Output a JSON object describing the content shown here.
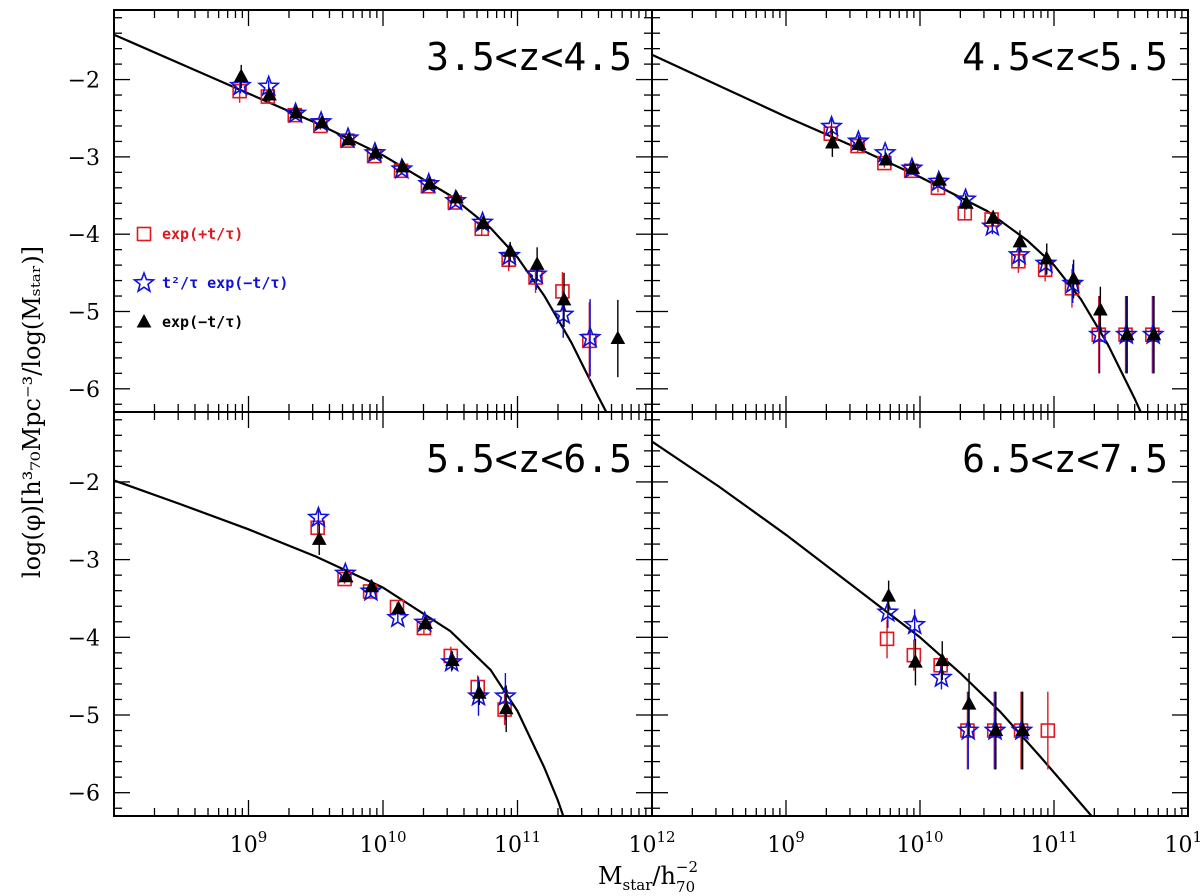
{
  "chart_data": {
    "type": "scatter",
    "x_scale": "log",
    "x_range": [
      100000000.0,
      1000000000000.0
    ],
    "y_range": [
      -6.3,
      -1.1
    ],
    "y_ticks": [
      -2,
      -3,
      -4,
      -5,
      -6
    ],
    "y_tick_labels": [
      "−2",
      "−3",
      "−4",
      "−5",
      "−6"
    ],
    "x_ticks": [
      9,
      10,
      11,
      12
    ],
    "x_tick_labels": {
      "base": "10",
      "exps": [
        "9",
        "10",
        "11",
        "12"
      ]
    },
    "xlabel": {
      "main": "M",
      "sub1": "star",
      "mid": "/h",
      "sup": "−2",
      "sub2": "70"
    },
    "ylabel": "log(φ)[h³₇₀Mpc⁻³/log(Mₛₜₐᵣ)]",
    "legend": {
      "placement": "left-middle of top-left panel",
      "entries": [
        {
          "label": "exp(+t/τ)",
          "marker": "square",
          "color": "#e0181e"
        },
        {
          "label": "t²/τ exp(−t/τ)",
          "marker": "star",
          "color": "#1010d8"
        },
        {
          "label": "exp(−t/τ)",
          "marker": "triangle",
          "color": "#000000"
        }
      ]
    },
    "panels": [
      {
        "label": "3.5<z<4.5",
        "curve": {
          "x": [
            8.0,
            8.5,
            9.0,
            9.5,
            10.0,
            10.5,
            10.8,
            11.0,
            11.2,
            11.4,
            11.6,
            11.75
          ],
          "y": [
            -1.42,
            -1.8,
            -2.18,
            -2.56,
            -2.98,
            -3.5,
            -3.92,
            -4.3,
            -4.8,
            -5.4,
            -6.1,
            -6.6
          ]
        },
        "series": [
          {
            "name": "exp(+t/τ)",
            "x": [
              8.94,
              9.15,
              9.35,
              9.54,
              9.74,
              9.94,
              10.14,
              10.34,
              10.54,
              10.74,
              10.94,
              11.14,
              11.34,
              11.54
            ],
            "y": [
              -2.15,
              -2.22,
              -2.46,
              -2.6,
              -2.79,
              -2.99,
              -3.18,
              -3.38,
              -3.59,
              -3.93,
              -4.33,
              -4.56,
              -4.74,
              -5.38
            ],
            "err": [
              0.15,
              0.08,
              0.05,
              0.05,
              0.05,
              0.05,
              0.05,
              0.05,
              0.05,
              0.08,
              0.15,
              0.2,
              0.25,
              0.5
            ]
          },
          {
            "name": "t²/τ exp(−t/τ)",
            "x": [
              8.94,
              9.15,
              9.35,
              9.54,
              9.74,
              9.94,
              10.14,
              10.34,
              10.54,
              10.74,
              10.94,
              11.14,
              11.34,
              11.54
            ],
            "y": [
              -2.08,
              -2.09,
              -2.44,
              -2.55,
              -2.76,
              -2.95,
              -3.16,
              -3.35,
              -3.57,
              -3.85,
              -4.28,
              -4.52,
              -5.04,
              -5.34
            ],
            "err": [
              0.1,
              0.08,
              0.05,
              0.05,
              0.05,
              0.05,
              0.05,
              0.05,
              0.05,
              0.08,
              0.15,
              0.2,
              0.3,
              0.5
            ]
          },
          {
            "name": "exp(−t/τ)",
            "x": [
              8.94,
              9.15,
              9.35,
              9.54,
              9.74,
              9.94,
              10.14,
              10.34,
              10.54,
              10.74,
              10.94,
              11.14,
              11.34,
              11.74
            ],
            "y": [
              -1.96,
              -2.2,
              -2.43,
              -2.56,
              -2.78,
              -2.95,
              -3.13,
              -3.35,
              -3.53,
              -3.86,
              -4.22,
              -4.39,
              -4.85,
              -5.35
            ],
            "err": [
              0.15,
              0.08,
              0.05,
              0.05,
              0.05,
              0.05,
              0.05,
              0.05,
              0.05,
              0.08,
              0.12,
              0.22,
              0.35,
              0.5
            ]
          }
        ]
      },
      {
        "label": "4.5<z<5.5",
        "curve": {
          "x": [
            8.0,
            8.5,
            9.0,
            9.5,
            10.0,
            10.5,
            10.8,
            11.0,
            11.2,
            11.4,
            11.6,
            11.7
          ],
          "y": [
            -1.68,
            -2.08,
            -2.48,
            -2.86,
            -3.26,
            -3.7,
            -4.08,
            -4.4,
            -4.84,
            -5.42,
            -6.12,
            -6.5
          ]
        },
        "series": [
          {
            "name": "exp(+t/τ)",
            "x": [
              9.34,
              9.54,
              9.74,
              9.94,
              10.14,
              10.34,
              10.54,
              10.74,
              10.94,
              11.14,
              11.34,
              11.54,
              11.74
            ],
            "y": [
              -2.7,
              -2.86,
              -3.08,
              -3.18,
              -3.4,
              -3.73,
              -3.81,
              -4.35,
              -4.46,
              -4.7,
              -5.3,
              -5.3,
              -5.3
            ],
            "err": [
              0.1,
              0.08,
              0.06,
              0.06,
              0.06,
              0.08,
              0.1,
              0.15,
              0.15,
              0.25,
              0.5,
              0.5,
              0.5
            ]
          },
          {
            "name": "t²/τ exp(−t/τ)",
            "x": [
              9.34,
              9.54,
              9.74,
              9.94,
              10.14,
              10.34,
              10.54,
              10.74,
              10.94,
              11.14,
              11.34,
              11.54,
              11.74
            ],
            "y": [
              -2.61,
              -2.8,
              -2.95,
              -3.15,
              -3.32,
              -3.55,
              -3.9,
              -4.27,
              -4.38,
              -4.64,
              -5.3,
              -5.3,
              -5.3
            ],
            "err": [
              0.1,
              0.08,
              0.06,
              0.06,
              0.06,
              0.08,
              0.1,
              0.15,
              0.15,
              0.25,
              0.5,
              0.5,
              0.5
            ]
          },
          {
            "name": "exp(−t/τ)",
            "x": [
              9.34,
              9.54,
              9.74,
              9.94,
              10.14,
              10.34,
              10.54,
              10.74,
              10.94,
              11.14,
              11.34,
              11.54,
              11.74
            ],
            "y": [
              -2.82,
              -2.84,
              -3.04,
              -3.15,
              -3.3,
              -3.6,
              -3.79,
              -4.1,
              -4.32,
              -4.58,
              -4.98,
              -5.3,
              -5.3
            ],
            "err": [
              0.18,
              0.08,
              0.06,
              0.06,
              0.06,
              0.08,
              0.1,
              0.15,
              0.2,
              0.25,
              0.3,
              0.5,
              0.5
            ]
          }
        ]
      },
      {
        "label": "5.5<z<6.5",
        "curve": {
          "x": [
            8.0,
            8.5,
            9.0,
            9.5,
            10.0,
            10.5,
            10.8,
            11.0,
            11.2,
            11.3,
            11.35
          ],
          "y": [
            -1.98,
            -2.29,
            -2.61,
            -2.96,
            -3.36,
            -3.92,
            -4.42,
            -4.95,
            -5.68,
            -6.1,
            -6.35
          ]
        },
        "series": [
          {
            "name": "exp(+t/τ)",
            "x": [
              9.52,
              9.72,
              9.91,
              10.11,
              10.31,
              10.51,
              10.71,
              10.91
            ],
            "y": [
              -2.59,
              -3.25,
              -3.41,
              -3.61,
              -3.88,
              -4.24,
              -4.64,
              -4.93
            ],
            "err": [
              0.1,
              0.06,
              0.06,
              0.06,
              0.08,
              0.12,
              0.15,
              0.2
            ]
          },
          {
            "name": "t²/τ exp(−t/τ)",
            "x": [
              9.52,
              9.72,
              9.91,
              10.11,
              10.31,
              10.51,
              10.71,
              10.91
            ],
            "y": [
              -2.46,
              -3.18,
              -3.41,
              -3.75,
              -3.81,
              -4.32,
              -4.76,
              -4.76
            ],
            "err": [
              0.1,
              0.06,
              0.06,
              0.06,
              0.08,
              0.12,
              0.25,
              0.3
            ]
          },
          {
            "name": "exp(−t/τ)",
            "x": [
              9.52,
              9.72,
              9.91,
              10.11,
              10.31,
              10.51,
              10.71,
              10.91
            ],
            "y": [
              -2.74,
              -3.22,
              -3.35,
              -3.63,
              -3.82,
              -4.3,
              -4.72,
              -4.92
            ],
            "err": [
              0.2,
              0.06,
              0.06,
              0.06,
              0.08,
              0.12,
              0.15,
              0.3
            ]
          }
        ]
      },
      {
        "label": "6.5<z<7.5",
        "curve": {
          "x": [
            8.0,
            8.5,
            9.0,
            9.5,
            10.0,
            10.3,
            10.6,
            10.9,
            11.1,
            11.3,
            11.45
          ],
          "y": [
            -1.48,
            -2.06,
            -2.68,
            -3.34,
            -4.0,
            -4.46,
            -4.96,
            -5.54,
            -5.94,
            -6.34,
            -6.62
          ]
        },
        "series": [
          {
            "name": "exp(+t/τ)",
            "x": [
              9.76,
              9.96,
              10.16,
              10.36,
              10.56,
              10.76,
              10.96
            ],
            "y": [
              -4.02,
              -4.23,
              -4.36,
              -5.2,
              -5.2,
              -5.2,
              -5.2
            ],
            "err": [
              0.25,
              0.2,
              0.1,
              0.5,
              0.5,
              0.5,
              0.5
            ]
          },
          {
            "name": "t²/τ exp(−t/τ)",
            "x": [
              9.76,
              9.96,
              10.16,
              10.36,
              10.56,
              10.76
            ],
            "y": [
              -3.68,
              -3.84,
              -4.52,
              -5.2,
              -5.2,
              -5.2
            ],
            "err": [
              0.2,
              0.2,
              0.15,
              0.5,
              0.5,
              0.5
            ]
          },
          {
            "name": "exp(−t/τ)",
            "x": [
              9.76,
              9.96,
              10.16,
              10.36,
              10.56,
              10.76
            ],
            "y": [
              -3.47,
              -4.32,
              -4.3,
              -4.86,
              -5.2,
              -5.2
            ],
            "err": [
              0.2,
              0.3,
              0.25,
              0.4,
              0.5,
              0.5
            ]
          }
        ]
      }
    ]
  }
}
